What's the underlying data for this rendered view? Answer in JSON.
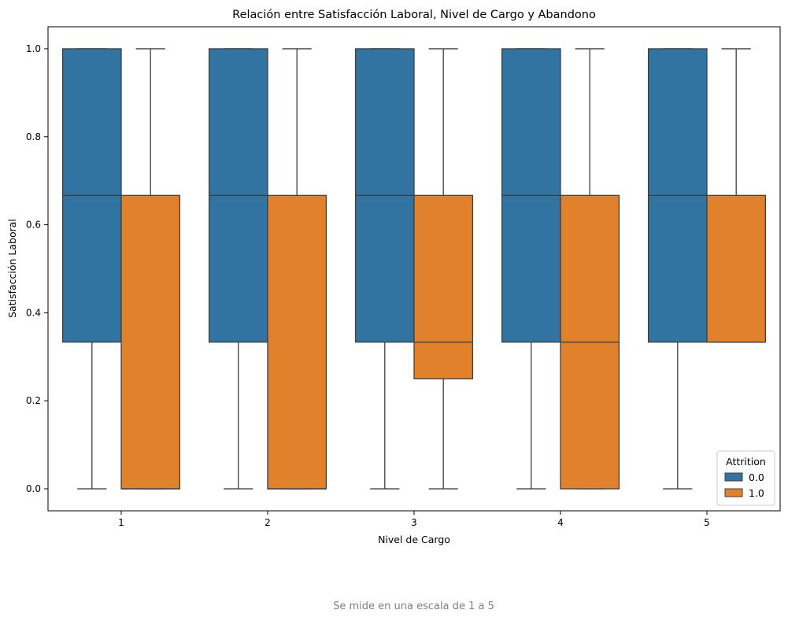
{
  "chart_data": {
    "type": "boxplot",
    "title": "Relación entre Satisfacción Laboral, Nivel de Cargo y Abandono",
    "xlabel": "Nivel de Cargo",
    "ylabel": "Satisfacción Laboral",
    "categories": [
      "1",
      "2",
      "3",
      "4",
      "5"
    ],
    "ylim": [
      -0.05,
      1.05
    ],
    "yticks": [
      "0.0",
      "0.2",
      "0.4",
      "0.6",
      "0.8",
      "1.0"
    ],
    "grid": false,
    "legend": {
      "title": "Attrition",
      "placement": "bottom-right"
    },
    "series": [
      {
        "name": "0.0",
        "color": "#3274a1",
        "boxes": [
          {
            "whisker_low": 0.0,
            "q1": 0.3333,
            "median": 0.6667,
            "q3": 1.0,
            "whisker_high": 1.0
          },
          {
            "whisker_low": 0.0,
            "q1": 0.3333,
            "median": 0.6667,
            "q3": 1.0,
            "whisker_high": 1.0
          },
          {
            "whisker_low": 0.0,
            "q1": 0.3333,
            "median": 0.6667,
            "q3": 1.0,
            "whisker_high": 1.0
          },
          {
            "whisker_low": 0.0,
            "q1": 0.3333,
            "median": 0.6667,
            "q3": 1.0,
            "whisker_high": 1.0
          },
          {
            "whisker_low": 0.0,
            "q1": 0.3333,
            "median": 0.6667,
            "q3": 1.0,
            "whisker_high": 1.0
          }
        ]
      },
      {
        "name": "1.0",
        "color": "#e1812c",
        "boxes": [
          {
            "whisker_low": 0.0,
            "q1": 0.0,
            "median": 0.0,
            "q3": 0.6667,
            "whisker_high": 1.0
          },
          {
            "whisker_low": 0.0,
            "q1": 0.0,
            "median": 0.0,
            "q3": 0.6667,
            "whisker_high": 1.0
          },
          {
            "whisker_low": 0.0,
            "q1": 0.25,
            "median": 0.3333,
            "q3": 0.6667,
            "whisker_high": 1.0
          },
          {
            "whisker_low": 0.0,
            "q1": 0.0,
            "median": 0.3333,
            "q3": 0.6667,
            "whisker_high": 1.0
          },
          {
            "whisker_low": 0.3333,
            "q1": 0.3333,
            "median": 0.3333,
            "q3": 0.6667,
            "whisker_high": 1.0
          }
        ]
      }
    ]
  },
  "caption": "Se mide en una escala de 1 a 5"
}
